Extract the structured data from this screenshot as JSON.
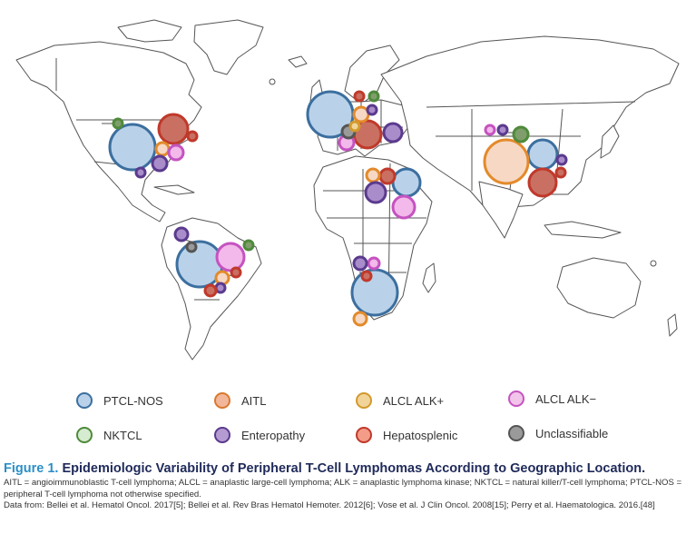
{
  "figure": {
    "label": "Figure 1.",
    "title": "Epidemiologic Variability of Peripheral T-Cell Lymphomas According to Geographic Location.",
    "abbreviations": "AITL = angioimmunoblastic T-cell lymphoma; ALCL = anaplastic large-cell lymphoma; ALK = anaplastic lymphoma kinase; NKTCL = natural killer/T-cell lymphoma; PTCL-NOS = peripheral T-cell lymphoma not otherwise specified.",
    "source": "Data from: Bellei et al. Hematol Oncol. 2017[5]; Bellei et al. Rev Bras Hematol Hemoter. 2012[6]; Vose et al. J Clin Oncol. 2008[15]; Perry et al. Haematologica. 2016.[48]"
  },
  "legend": [
    {
      "label": "PTCL-NOS",
      "fill": "#b9d2ea",
      "stroke": "#3c6f9f"
    },
    {
      "label": "AITL",
      "fill": "#f2b79a",
      "stroke": "#d9782f"
    },
    {
      "label": "ALCL ALK+",
      "fill": "#f1d49a",
      "stroke": "#d29a2c"
    },
    {
      "label": "ALCL ALK−",
      "fill": "#f2c4ea",
      "stroke": "#c553c0"
    },
    {
      "label": "NKTCL",
      "fill": "#d6ecd0",
      "stroke": "#4f8a3b"
    },
    {
      "label": "Enteropathy",
      "fill": "#b49bd2",
      "stroke": "#5b3a8e"
    },
    {
      "label": "Hepatosplenic",
      "fill": "#f39c88",
      "stroke": "#c0392b"
    },
    {
      "label": "Unclassifiable",
      "fill": "#9a9a9a",
      "stroke": "#555555"
    }
  ],
  "colors": {
    "land": "#ffffff",
    "border": "#555555",
    "ptcl_fill": "#b9d2ea",
    "ptcl_stroke": "#3c6f9f",
    "aitl_fill": "#f2b79a",
    "aitl_stroke": "#d9782f",
    "alk_pos_fill": "#f1d49a",
    "alk_pos_stroke": "#d29a2c",
    "alk_neg_fill": "#f2c4ea",
    "alk_neg_stroke": "#c553c0",
    "nktcl_fill": "#d6ecd0",
    "nktcl_stroke": "#4f8a3b",
    "entero_fill": "#b49bd2",
    "entero_stroke": "#5b3a8e",
    "hepato_fill": "#f39c88",
    "hepato_stroke": "#c0392b",
    "unclass_fill": "#9a9a9a",
    "unclass_stroke": "#555555",
    "caption_title": "#1f2a5a",
    "caption_label": "#2a8fc7"
  }
}
